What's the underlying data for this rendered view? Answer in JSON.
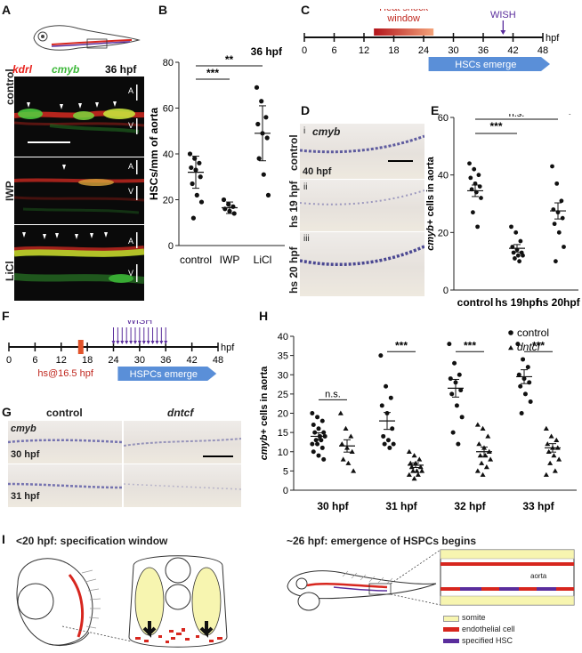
{
  "panel_letters": {
    "a": "A",
    "b": "B",
    "c": "C",
    "d": "D",
    "e": "E",
    "f": "F",
    "g": "G",
    "h": "H",
    "i": "I"
  },
  "panel_a": {
    "header_kdrl": "kdrl",
    "header_cmyb": "cmyb",
    "header_time": "36 hpf",
    "rows": [
      {
        "label": "control",
        "a": "A",
        "v": "V"
      },
      {
        "label": "IWP",
        "a": "A",
        "v": "V"
      },
      {
        "label": "LiCl",
        "a": "A",
        "v": "V"
      }
    ],
    "colors": {
      "kdrl": "#e8201b",
      "cmyb": "#3db83a"
    }
  },
  "panel_c": {
    "heat_shock_label": "Heat shock\nwindow",
    "wish_label": "WISH",
    "emerge_label": "HSCs emerge",
    "ticks": [
      "0",
      "6",
      "12",
      "18",
      "24",
      "30",
      "36",
      "42",
      "48"
    ],
    "unit": "hpf"
  },
  "panel_d": {
    "gene": "cmyb",
    "row_i": "i",
    "row_ii": "ii",
    "row_iii": "iii",
    "label_control": "control",
    "label_time": "40 hpf",
    "label_hs19": "hs 19 hpf",
    "label_hs20": "hs 20 hpf"
  },
  "panel_f": {
    "wish_label": "WISH",
    "hs_label": "hs@16.5 hpf",
    "emerge_label": "HSPCs emerge",
    "ticks": [
      "0",
      "6",
      "12",
      "18",
      "24",
      "30",
      "36",
      "42",
      "48"
    ],
    "unit": "hpf"
  },
  "panel_g": {
    "col_control": "control",
    "col_dntcf": "dntcf",
    "gene": "cmyb",
    "row1": "30 hpf",
    "row2": "31 hpf"
  },
  "panel_i": {
    "left_title": "<20 hpf: specification window",
    "right_title": "~26 hpf: emergence of HSPCs begins",
    "aorta_label": "aorta",
    "legend": [
      {
        "label": "somite",
        "color": "#f7f5b0"
      },
      {
        "label": "endothelial cell",
        "color": "#d7261e"
      },
      {
        "label": "specified HSC",
        "color": "#5a2d9c"
      }
    ]
  },
  "chart_data": [
    {
      "id": "B",
      "type": "scatter",
      "title": "36 hpf",
      "ylabel": "HSCs/mm of aorta",
      "ylim": [
        0,
        80
      ],
      "yticks": [
        0,
        20,
        40,
        60,
        80
      ],
      "categories": [
        "control",
        "IWP",
        "LiCl"
      ],
      "series": [
        {
          "values": [
            40,
            38,
            36,
            34,
            33,
            30,
            27,
            22,
            19,
            12
          ]
        },
        {
          "values": [
            20,
            18,
            17,
            16,
            15,
            14
          ]
        },
        {
          "values": [
            69,
            63,
            56,
            53,
            49,
            47,
            38,
            31,
            22
          ]
        }
      ],
      "means": [
        32,
        16.5,
        49
      ],
      "sd": [
        7,
        2.5,
        12
      ],
      "significance": [
        {
          "from": "control",
          "to": "IWP",
          "label": "***"
        },
        {
          "from": "control",
          "to": "LiCl",
          "label": "**"
        }
      ]
    },
    {
      "id": "E",
      "type": "scatter",
      "title": "40 hpf",
      "ylabel": "cmyb+ cells in aorta",
      "ylim": [
        0,
        60
      ],
      "yticks": [
        0,
        20,
        40,
        60
      ],
      "categories": [
        "control",
        "hs 19hpf",
        "hs 20hpf"
      ],
      "series": [
        {
          "values": [
            44,
            42,
            40,
            39,
            37,
            36,
            35,
            34,
            32,
            27,
            22
          ]
        },
        {
          "values": [
            22,
            20,
            17,
            15,
            14,
            13,
            13,
            12,
            12,
            11,
            10
          ]
        },
        {
          "values": [
            43,
            37,
            31,
            28,
            27,
            25,
            23,
            20,
            15,
            10
          ]
        }
      ],
      "means": [
        34.5,
        14.5,
        27.5
      ],
      "sem": [
        2,
        1.3,
        2.8
      ],
      "significance": [
        {
          "from": "control",
          "to": "hs 19hpf",
          "label": "***"
        },
        {
          "from": "control",
          "to": "hs 20hpf",
          "label": "n.s."
        }
      ]
    },
    {
      "id": "H",
      "type": "scatter",
      "ylabel": "cmyb+ cells in aorta",
      "ylim": [
        0,
        40
      ],
      "yticks": [
        0,
        5,
        10,
        15,
        20,
        25,
        30,
        35,
        40
      ],
      "categories": [
        "30 hpf",
        "31 hpf",
        "32 hpf",
        "33 hpf"
      ],
      "series": [
        {
          "name": "control",
          "marker": "circle",
          "values": [
            [
              20,
              19,
              18,
              17,
              16,
              15,
              15,
              14,
              14,
              13,
              13,
              12,
              12,
              11,
              10,
              9,
              8
            ],
            [
              35,
              27,
              24,
              22,
              20,
              16,
              14,
              13,
              12,
              12,
              11
            ],
            [
              38,
              33,
              30,
              29,
              28,
              26,
              25,
              22,
              19,
              15,
              12
            ],
            [
              38,
              34,
              32,
              30,
              29,
              28,
              27,
              25,
              23,
              20
            ]
          ],
          "means": [
            14,
            18,
            26.5,
            29.5
          ],
          "sem": [
            0.9,
            2.2,
            2.3,
            1.8
          ]
        },
        {
          "name": "dntcf",
          "marker": "triangle",
          "values": [
            [
              20,
              16,
              14,
              12,
              11,
              10,
              8,
              7,
              5
            ],
            [
              10,
              9,
              8,
              7,
              7,
              6,
              6,
              5,
              5,
              5,
              4,
              4,
              3
            ],
            [
              17,
              16,
              14,
              12,
              11,
              10,
              9,
              9,
              8,
              7,
              6,
              5,
              4
            ],
            [
              16,
              14,
              13,
              12,
              11,
              11,
              10,
              9,
              8,
              7,
              5,
              4
            ]
          ],
          "means": [
            11.5,
            6.5,
            10,
            11
          ],
          "sem": [
            1.6,
            0.6,
            1.2,
            1.1
          ]
        }
      ],
      "significance": [
        "n.s.",
        "***",
        "***",
        "***"
      ],
      "legend": [
        "control",
        "dntcf"
      ],
      "legend_position": "top-right"
    }
  ]
}
